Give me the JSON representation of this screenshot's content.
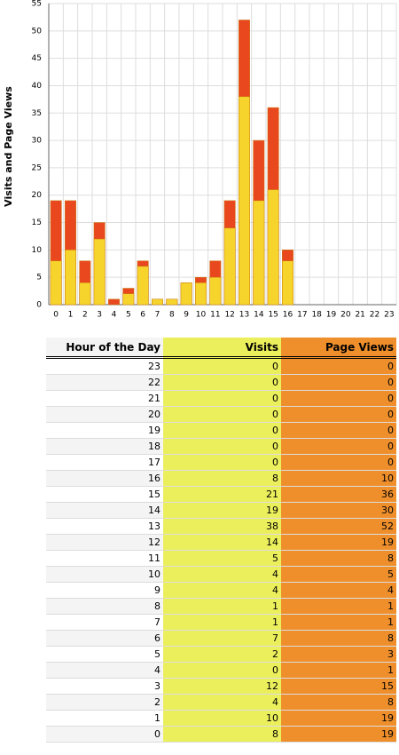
{
  "chart_data": {
    "type": "bar",
    "y_label": "Visits and Page Views",
    "categories": [
      "0",
      "1",
      "2",
      "3",
      "4",
      "5",
      "6",
      "7",
      "8",
      "9",
      "10",
      "11",
      "12",
      "13",
      "14",
      "15",
      "16",
      "17",
      "18",
      "19",
      "20",
      "21",
      "22",
      "23"
    ],
    "series": [
      {
        "name": "Page Views",
        "color": "#e9481e",
        "values": [
          19,
          19,
          8,
          15,
          1,
          3,
          8,
          1,
          1,
          4,
          5,
          8,
          19,
          52,
          30,
          36,
          10,
          0,
          0,
          0,
          0,
          0,
          0,
          0
        ]
      },
      {
        "name": "Visits",
        "color": "#f6d42c",
        "values": [
          8,
          10,
          4,
          12,
          0,
          2,
          7,
          1,
          1,
          4,
          4,
          5,
          14,
          38,
          19,
          21,
          8,
          0,
          0,
          0,
          0,
          0,
          0,
          0
        ]
      }
    ],
    "ylim": [
      0,
      55
    ],
    "yticks": [
      0,
      5,
      10,
      15,
      20,
      25,
      30,
      35,
      40,
      45,
      50,
      55
    ],
    "grid": true
  },
  "table": {
    "headers": [
      "Hour of the Day",
      "Visits",
      "Page Views"
    ]
  }
}
